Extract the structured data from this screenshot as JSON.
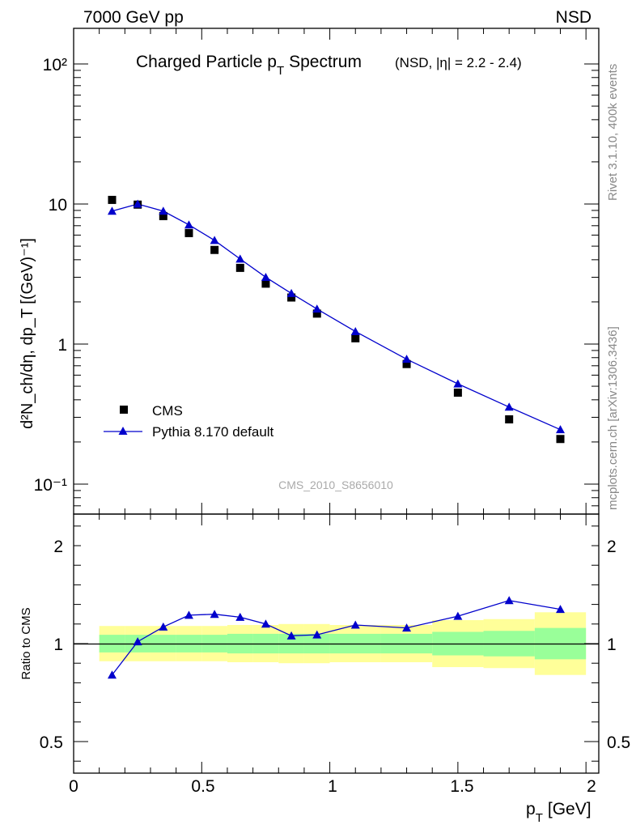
{
  "header": {
    "energy_label": "7000 GeV pp",
    "process_label": "NSD"
  },
  "side": {
    "rivet_label": "Rivet 3.1.10,  400k events",
    "source_label": "mcplots.cern.ch [arXiv:1306.3436]"
  },
  "chart_data": [
    {
      "type": "scatter",
      "title_main": "Charged Particle p",
      "title_sub": "T",
      "title_main2": "Spectrum",
      "title_small": "(NSD, |η| = 2.2 - 2.4)",
      "ylabel": "d²N_ch/dη, dp_T [(GeV)⁻¹]",
      "yscale": "log",
      "ylim": [
        0.065,
        180
      ],
      "xlim": [
        0,
        2.05
      ],
      "y_tick_labels": [
        "10⁻¹",
        "1",
        "10",
        "10²"
      ],
      "watermark": "CMS_2010_S8656010",
      "legend_position": "lower-left",
      "series": [
        {
          "name": "CMS",
          "marker": "square",
          "color": "#000000",
          "x": [
            0.15,
            0.25,
            0.35,
            0.45,
            0.55,
            0.65,
            0.75,
            0.85,
            0.95,
            1.1,
            1.3,
            1.5,
            1.7,
            1.9
          ],
          "y": [
            10.7,
            9.9,
            8.2,
            6.2,
            4.7,
            3.5,
            2.7,
            2.15,
            1.65,
            1.1,
            0.72,
            0.45,
            0.29,
            0.21
          ]
        },
        {
          "name": "Pythia 8.170 default",
          "marker": "triangle",
          "color": "#0000cc",
          "x": [
            0.15,
            0.25,
            0.35,
            0.45,
            0.55,
            0.65,
            0.75,
            0.85,
            0.95,
            1.1,
            1.3,
            1.5,
            1.7,
            1.9
          ],
          "y": [
            8.9,
            10.0,
            8.9,
            7.1,
            5.5,
            4.05,
            3.0,
            2.3,
            1.78,
            1.23,
            0.78,
            0.52,
            0.355,
            0.245
          ]
        }
      ]
    },
    {
      "type": "line",
      "ylabel": "Ratio to CMS",
      "xlabel_main": "p",
      "xlabel_sub": "T",
      "xlabel_unit": "[GeV]",
      "xlim": [
        0,
        2.05
      ],
      "ylim": [
        0.35,
        2.35
      ],
      "y_ticks": [
        0.5,
        1,
        2
      ],
      "y_tick_labels": [
        "0.5",
        "1",
        "2"
      ],
      "x_ticks": [
        0,
        0.5,
        1,
        1.5,
        2
      ],
      "x_tick_labels": [
        "0",
        "0.5",
        "1",
        "1.5",
        "2"
      ],
      "bands": {
        "bins": [
          [
            0.1,
            0.2
          ],
          [
            0.2,
            0.3
          ],
          [
            0.3,
            0.4
          ],
          [
            0.4,
            0.5
          ],
          [
            0.5,
            0.6
          ],
          [
            0.6,
            0.7
          ],
          [
            0.7,
            0.8
          ],
          [
            0.8,
            0.9
          ],
          [
            0.9,
            1.0
          ],
          [
            1.0,
            1.2
          ],
          [
            1.2,
            1.4
          ],
          [
            1.4,
            1.6
          ],
          [
            1.6,
            1.8
          ],
          [
            1.8,
            2.0
          ]
        ],
        "yellow_lo": [
          0.91,
          0.91,
          0.91,
          0.91,
          0.91,
          0.905,
          0.905,
          0.9,
          0.9,
          0.905,
          0.905,
          0.88,
          0.875,
          0.84
        ],
        "yellow_hi": [
          1.09,
          1.09,
          1.09,
          1.09,
          1.09,
          1.095,
          1.095,
          1.1,
          1.1,
          1.095,
          1.095,
          1.12,
          1.125,
          1.16
        ],
        "green_lo": [
          0.955,
          0.955,
          0.955,
          0.955,
          0.955,
          0.95,
          0.95,
          0.95,
          0.95,
          0.95,
          0.95,
          0.94,
          0.935,
          0.92
        ],
        "green_hi": [
          1.045,
          1.045,
          1.045,
          1.045,
          1.045,
          1.05,
          1.05,
          1.05,
          1.05,
          1.05,
          1.05,
          1.06,
          1.065,
          1.08
        ],
        "yellow_color": "#ffff99",
        "green_color": "#99ff99"
      },
      "series": [
        {
          "name": "Pythia 8.170 default",
          "marker": "triangle",
          "color": "#0000cc",
          "x": [
            0.15,
            0.25,
            0.35,
            0.45,
            0.55,
            0.65,
            0.75,
            0.85,
            0.95,
            1.1,
            1.3,
            1.5,
            1.7,
            1.9
          ],
          "y": [
            0.84,
            1.01,
            1.085,
            1.145,
            1.15,
            1.135,
            1.1,
            1.04,
            1.045,
            1.095,
            1.08,
            1.14,
            1.22,
            1.175
          ]
        }
      ]
    }
  ]
}
